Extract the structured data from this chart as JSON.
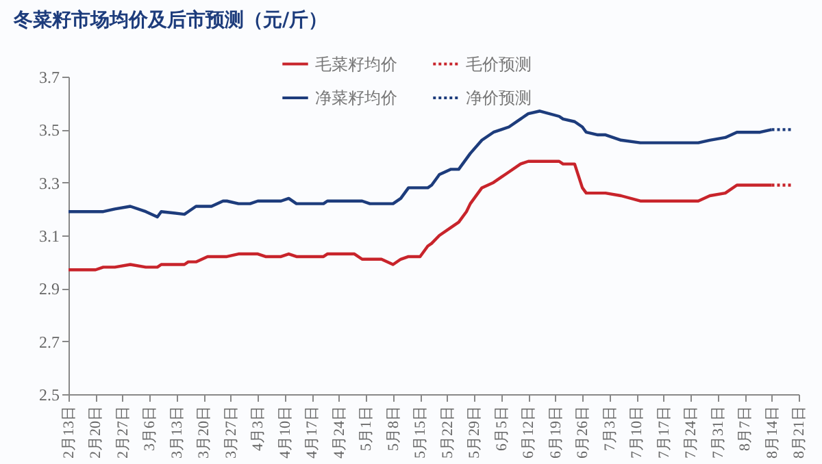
{
  "chart_data": {
    "type": "line",
    "title": "冬菜籽市场均价及后市预测（元/斤）",
    "xlim": [
      "--02-13",
      "--08-21"
    ],
    "xticks": [
      {
        "value": "--02-13",
        "label": "2月13日"
      },
      {
        "value": "--02-20",
        "label": "2月20日"
      },
      {
        "value": "--02-27",
        "label": "2月27日"
      },
      {
        "value": "--03-06",
        "label": "3月6日"
      },
      {
        "value": "--03-13",
        "label": "3月13日"
      },
      {
        "value": "--03-20",
        "label": "3月20日"
      },
      {
        "value": "--03-27",
        "label": "3月27日"
      },
      {
        "value": "--04-03",
        "label": "4月3日"
      },
      {
        "value": "--04-10",
        "label": "4月10日"
      },
      {
        "value": "--04-17",
        "label": "4月17日"
      },
      {
        "value": "--04-24",
        "label": "4月24日"
      },
      {
        "value": "--05-01",
        "label": "5月1日"
      },
      {
        "value": "--05-08",
        "label": "5月8日"
      },
      {
        "value": "--05-15",
        "label": "5月15日"
      },
      {
        "value": "--05-22",
        "label": "5月22日"
      },
      {
        "value": "--05-29",
        "label": "5月29日"
      },
      {
        "value": "--06-05",
        "label": "6月5日"
      },
      {
        "value": "--06-12",
        "label": "6月12日"
      },
      {
        "value": "--06-19",
        "label": "6月19日"
      },
      {
        "value": "--06-26",
        "label": "6月26日"
      },
      {
        "value": "--07-03",
        "label": "7月3日"
      },
      {
        "value": "--07-10",
        "label": "7月10日"
      },
      {
        "value": "--07-17",
        "label": "7月17日"
      },
      {
        "value": "--07-24",
        "label": "7月24日"
      },
      {
        "value": "--07-31",
        "label": "7月31日"
      },
      {
        "value": "--08-07",
        "label": "8月7日"
      },
      {
        "value": "--08-14",
        "label": "8月14日"
      },
      {
        "value": "--08-21",
        "label": "8月21日"
      }
    ],
    "ylim": [
      2.5,
      3.7
    ],
    "yticks": [
      2.5,
      2.7,
      2.9,
      3.1,
      3.3,
      3.5,
      3.7
    ],
    "grid": false,
    "legend": "top",
    "marker": "none",
    "x": [
      "--02-13",
      "--02-20",
      "--02-22",
      "--02-25",
      "--03-01",
      "--03-05",
      "--03-08",
      "--03-09",
      "--03-15",
      "--03-16",
      "--03-18",
      "--03-21",
      "--03-22",
      "--03-25",
      "--03-26",
      "--03-29",
      "--04-01",
      "--04-03",
      "--04-05",
      "--04-09",
      "--04-11",
      "--04-13",
      "--04-20",
      "--04-21",
      "--04-28",
      "--04-30",
      "--05-02",
      "--05-05",
      "--05-08",
      "--05-10",
      "--05-12",
      "--05-15",
      "--05-17",
      "--05-18",
      "--05-20",
      "--05-23",
      "--05-25",
      "--05-27",
      "--05-28",
      "--05-31",
      "--06-03",
      "--06-05",
      "--06-07",
      "--06-10",
      "--06-12",
      "--06-15",
      "--06-20",
      "--06-21",
      "--06-24",
      "--06-26",
      "--06-27",
      "--06-30",
      "--07-02",
      "--07-06",
      "--07-11",
      "--07-19",
      "--07-26",
      "--07-29",
      "--08-02",
      "--08-05",
      "--08-11",
      "--08-14"
    ],
    "series": [
      {
        "name": "毛菜籽均价",
        "color": "#c8242b",
        "line_style": "solid",
        "values": [
          2.97,
          2.97,
          2.98,
          2.98,
          2.99,
          2.98,
          2.98,
          2.99,
          2.99,
          3.0,
          3.0,
          3.02,
          3.02,
          3.02,
          3.02,
          3.03,
          3.03,
          3.03,
          3.02,
          3.02,
          3.03,
          3.02,
          3.02,
          3.03,
          3.03,
          3.01,
          3.01,
          3.01,
          2.99,
          3.01,
          3.02,
          3.02,
          3.06,
          3.07,
          3.1,
          3.13,
          3.15,
          3.19,
          3.22,
          3.28,
          3.3,
          3.32,
          3.34,
          3.37,
          3.38,
          3.38,
          3.38,
          3.37,
          3.37,
          3.28,
          3.26,
          3.26,
          3.26,
          3.25,
          3.23,
          3.23,
          3.23,
          3.25,
          3.26,
          3.29,
          3.29,
          3.29
        ]
      },
      {
        "name": "毛价预测",
        "color": "#c8242b",
        "line_style": "dotted",
        "x": [
          "--08-14",
          "--08-19"
        ],
        "values": [
          3.29,
          3.29
        ]
      },
      {
        "name": "净菜籽均价",
        "color": "#1d3c7c",
        "line_style": "solid",
        "values": [
          3.19,
          3.19,
          3.19,
          3.2,
          3.21,
          3.19,
          3.17,
          3.19,
          3.18,
          3.19,
          3.21,
          3.21,
          3.21,
          3.23,
          3.23,
          3.22,
          3.22,
          3.23,
          3.23,
          3.23,
          3.24,
          3.22,
          3.22,
          3.23,
          3.23,
          3.23,
          3.22,
          3.22,
          3.22,
          3.24,
          3.28,
          3.28,
          3.28,
          3.29,
          3.33,
          3.35,
          3.35,
          3.39,
          3.41,
          3.46,
          3.49,
          3.5,
          3.51,
          3.54,
          3.56,
          3.57,
          3.55,
          3.54,
          3.53,
          3.51,
          3.49,
          3.48,
          3.48,
          3.46,
          3.45,
          3.45,
          3.45,
          3.46,
          3.47,
          3.49,
          3.49,
          3.5
        ]
      },
      {
        "name": "净价预测",
        "color": "#1d3c7c",
        "line_style": "dotted",
        "x": [
          "--08-14",
          "--08-19"
        ],
        "values": [
          3.5,
          3.5
        ]
      }
    ]
  }
}
